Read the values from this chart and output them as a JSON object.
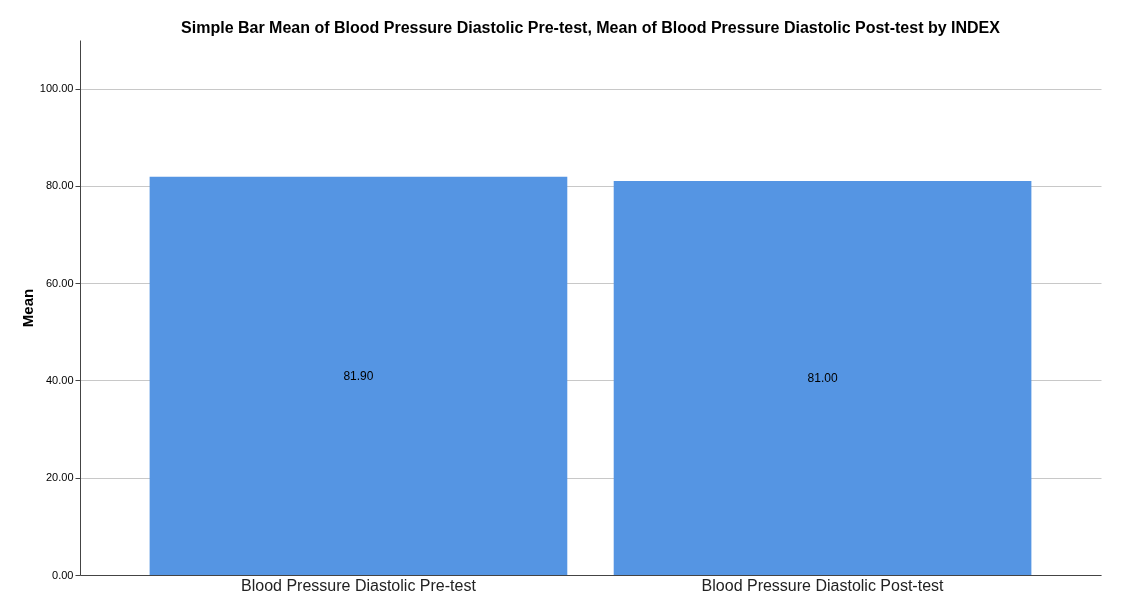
{
  "chart_data": {
    "type": "bar",
    "title": "Simple Bar Mean of Blood Pressure Diastolic Pre-test, Mean of Blood Pressure Diastolic Post-test by INDEX",
    "ylabel": "Mean",
    "categories": [
      "Blood Pressure Diastolic Pre-test",
      "Blood Pressure Diastolic Post-test"
    ],
    "values": [
      81.9,
      81.0
    ],
    "value_labels": [
      "81.90",
      "81.00"
    ],
    "color": "#5595e3",
    "ylim": [
      0,
      110
    ],
    "yticks": [
      {
        "value": 0,
        "label": "0.00"
      },
      {
        "value": 20,
        "label": "20.00"
      },
      {
        "value": 40,
        "label": "40.00"
      },
      {
        "value": 60,
        "label": "60.00"
      },
      {
        "value": 80,
        "label": "80.00"
      },
      {
        "value": 100,
        "label": "100.00"
      }
    ],
    "grid": "y"
  }
}
